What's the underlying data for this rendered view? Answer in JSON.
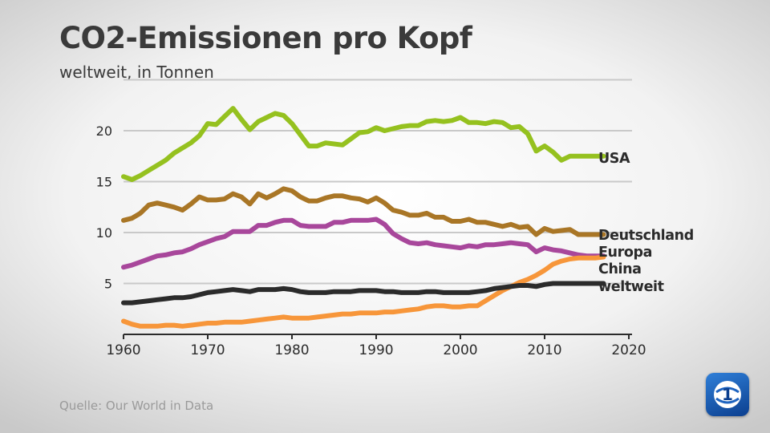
{
  "title": "CO2-Emissionen pro Kopf",
  "subtitle": "weltweit, in Tonnen",
  "source": "Quelle: Our World in Data",
  "logo": {
    "icon": "tagesschau-logo-icon",
    "text": "1"
  },
  "chart_data": {
    "type": "line",
    "title": "CO2-Emissionen pro Kopf",
    "subtitle": "weltweit, in Tonnen",
    "xlabel": "",
    "ylabel": "",
    "xlim": [
      1960,
      2020
    ],
    "ylim": [
      0,
      25
    ],
    "x_ticks": [
      1960,
      1970,
      1980,
      1990,
      2000,
      2010,
      2020
    ],
    "y_ticks": [
      5,
      10,
      15,
      20
    ],
    "grid": true,
    "legend": "labels at line ends (right)",
    "x": [
      1960,
      1961,
      1962,
      1963,
      1964,
      1965,
      1966,
      1967,
      1968,
      1969,
      1970,
      1971,
      1972,
      1973,
      1974,
      1975,
      1976,
      1977,
      1978,
      1979,
      1980,
      1981,
      1982,
      1983,
      1984,
      1985,
      1986,
      1987,
      1988,
      1989,
      1990,
      1991,
      1992,
      1993,
      1994,
      1995,
      1996,
      1997,
      1998,
      1999,
      2000,
      2001,
      2002,
      2003,
      2004,
      2005,
      2006,
      2007,
      2008,
      2009,
      2010,
      2011,
      2012,
      2013,
      2014,
      2015,
      2016,
      2017
    ],
    "series": [
      {
        "name": "USA",
        "color": "#95c11f",
        "values": [
          15.5,
          15.2,
          15.6,
          16.1,
          16.6,
          17.1,
          17.8,
          18.3,
          18.8,
          19.5,
          20.7,
          20.6,
          21.4,
          22.2,
          21.1,
          20.1,
          20.9,
          21.3,
          21.7,
          21.5,
          20.7,
          19.6,
          18.5,
          18.5,
          18.8,
          18.7,
          18.6,
          19.2,
          19.8,
          19.9,
          20.3,
          20.0,
          20.2,
          20.4,
          20.5,
          20.5,
          20.9,
          21.0,
          20.9,
          21.0,
          21.3,
          20.8,
          20.8,
          20.7,
          20.9,
          20.8,
          20.3,
          20.4,
          19.7,
          18.0,
          18.5,
          17.9,
          17.1,
          17.5,
          17.5,
          17.5,
          17.5,
          17.5
        ]
      },
      {
        "name": "Deutschland",
        "color": "#a97626",
        "values": [
          11.2,
          11.4,
          11.9,
          12.7,
          12.9,
          12.7,
          12.5,
          12.2,
          12.8,
          13.5,
          13.2,
          13.2,
          13.3,
          13.8,
          13.5,
          12.8,
          13.8,
          13.4,
          13.8,
          14.3,
          14.1,
          13.5,
          13.1,
          13.1,
          13.4,
          13.6,
          13.6,
          13.4,
          13.3,
          13.0,
          13.4,
          12.9,
          12.2,
          12.0,
          11.7,
          11.7,
          11.9,
          11.5,
          11.5,
          11.1,
          11.1,
          11.3,
          11.0,
          11.0,
          10.8,
          10.6,
          10.8,
          10.5,
          10.6,
          9.8,
          10.4,
          10.1,
          10.2,
          10.3,
          9.8,
          9.8,
          9.8,
          9.8
        ]
      },
      {
        "name": "Europa",
        "color": "#a8479b",
        "values": [
          6.6,
          6.8,
          7.1,
          7.4,
          7.7,
          7.8,
          8.0,
          8.1,
          8.4,
          8.8,
          9.1,
          9.4,
          9.6,
          10.1,
          10.1,
          10.1,
          10.7,
          10.7,
          11.0,
          11.2,
          11.2,
          10.7,
          10.6,
          10.6,
          10.6,
          11.0,
          11.0,
          11.2,
          11.2,
          11.2,
          11.3,
          10.8,
          9.9,
          9.4,
          9.0,
          8.9,
          9.0,
          8.8,
          8.7,
          8.6,
          8.5,
          8.7,
          8.6,
          8.8,
          8.8,
          8.9,
          9.0,
          8.9,
          8.8,
          8.1,
          8.5,
          8.3,
          8.2,
          8.0,
          7.8,
          7.7,
          7.7,
          7.7
        ]
      },
      {
        "name": "China",
        "color": "#f7963a",
        "values": [
          1.3,
          1.0,
          0.8,
          0.8,
          0.8,
          0.9,
          0.9,
          0.8,
          0.9,
          1.0,
          1.1,
          1.1,
          1.2,
          1.2,
          1.2,
          1.3,
          1.4,
          1.5,
          1.6,
          1.7,
          1.6,
          1.6,
          1.6,
          1.7,
          1.8,
          1.9,
          2.0,
          2.0,
          2.1,
          2.1,
          2.1,
          2.2,
          2.2,
          2.3,
          2.4,
          2.5,
          2.7,
          2.8,
          2.8,
          2.7,
          2.7,
          2.8,
          2.8,
          3.3,
          3.8,
          4.3,
          4.7,
          5.1,
          5.4,
          5.8,
          6.3,
          6.9,
          7.2,
          7.4,
          7.5,
          7.5,
          7.5,
          7.6
        ]
      },
      {
        "name": "weltweit",
        "color": "#2b2b2b",
        "values": [
          3.1,
          3.1,
          3.2,
          3.3,
          3.4,
          3.5,
          3.6,
          3.6,
          3.7,
          3.9,
          4.1,
          4.2,
          4.3,
          4.4,
          4.3,
          4.2,
          4.4,
          4.4,
          4.4,
          4.5,
          4.4,
          4.2,
          4.1,
          4.1,
          4.1,
          4.2,
          4.2,
          4.2,
          4.3,
          4.3,
          4.3,
          4.2,
          4.2,
          4.1,
          4.1,
          4.1,
          4.2,
          4.2,
          4.1,
          4.1,
          4.1,
          4.1,
          4.2,
          4.3,
          4.5,
          4.6,
          4.7,
          4.8,
          4.8,
          4.7,
          4.9,
          5.0,
          5.0,
          5.0,
          5.0,
          5.0,
          5.0,
          5.0
        ]
      }
    ]
  }
}
